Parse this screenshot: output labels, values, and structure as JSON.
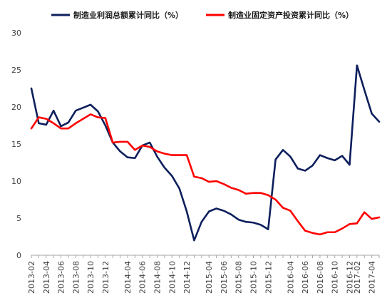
{
  "chart_data": {
    "type": "line",
    "title": "",
    "xlabel": "",
    "ylabel": "",
    "ylim": [
      0,
      30
    ],
    "yticks": [
      0,
      5,
      10,
      15,
      20,
      25,
      30
    ],
    "grid": false,
    "legend_position": "top",
    "x": [
      "2013-02",
      "2013-03",
      "2013-04",
      "2013-05",
      "2013-06",
      "2013-07",
      "2013-08",
      "2013-09",
      "2013-10",
      "2013-11",
      "2013-12",
      "2014-02",
      "2014-03",
      "2014-04",
      "2014-05",
      "2014-06",
      "2014-07",
      "2014-08",
      "2014-09",
      "2014-10",
      "2014-11",
      "2014-12",
      "2015-02",
      "2015-03",
      "2015-04",
      "2015-05",
      "2015-06",
      "2015-07",
      "2015-08",
      "2015-09",
      "2015-10",
      "2015-11",
      "2015-12",
      "2016-02",
      "2016-03",
      "2016-04",
      "2016-05",
      "2016-06",
      "2016-07",
      "2016-08",
      "2016-09",
      "2016-10",
      "2016-11",
      "2016-12",
      "2017-02",
      "2017-03",
      "2017-04",
      "2017-05"
    ],
    "xtick_labels": [
      "2013-02",
      "2013-04",
      "2013-06",
      "2013-08",
      "2013-10",
      "2013-12",
      "2014-04",
      "2014-06",
      "2014-08",
      "2014-10",
      "2014-12",
      "2015-04",
      "2015-06",
      "2015-08",
      "2015-10",
      "2015-12",
      "2016-04",
      "2016-06",
      "2016-08",
      "2016-10",
      "2016-12",
      "2017-02",
      "2017-04"
    ],
    "series": [
      {
        "name": "制造业利润总额累计同比（%）",
        "color": "#0d1f5c",
        "values": [
          22.5,
          17.8,
          17.6,
          19.5,
          17.4,
          17.9,
          19.5,
          19.9,
          20.3,
          19.4,
          17.5,
          15.2,
          14.0,
          13.2,
          13.1,
          14.8,
          15.2,
          13.3,
          11.8,
          10.7,
          9.0,
          5.9,
          2.0,
          4.5,
          5.9,
          6.3,
          6.0,
          5.5,
          4.8,
          4.5,
          4.4,
          4.1,
          3.5,
          12.9,
          14.2,
          13.3,
          11.7,
          11.4,
          12.1,
          13.5,
          13.1,
          12.8,
          13.4,
          12.2,
          25.6,
          22.3,
          19.1,
          18.0
        ]
      },
      {
        "name": "制造业固定资产投资累计同比（%）",
        "color": "#ff0000",
        "values": [
          17.1,
          18.6,
          18.4,
          17.8,
          17.1,
          17.1,
          17.8,
          18.4,
          19.0,
          18.6,
          18.5,
          15.2,
          15.3,
          15.3,
          14.2,
          14.8,
          14.6,
          14.0,
          13.7,
          13.5,
          13.5,
          13.5,
          10.6,
          10.4,
          9.9,
          10.0,
          9.6,
          9.1,
          8.8,
          8.3,
          8.4,
          8.4,
          8.1,
          7.5,
          6.4,
          6.0,
          4.6,
          3.3,
          3.0,
          2.8,
          3.1,
          3.1,
          3.6,
          4.2,
          4.3,
          5.8,
          4.9,
          5.1
        ]
      }
    ]
  }
}
